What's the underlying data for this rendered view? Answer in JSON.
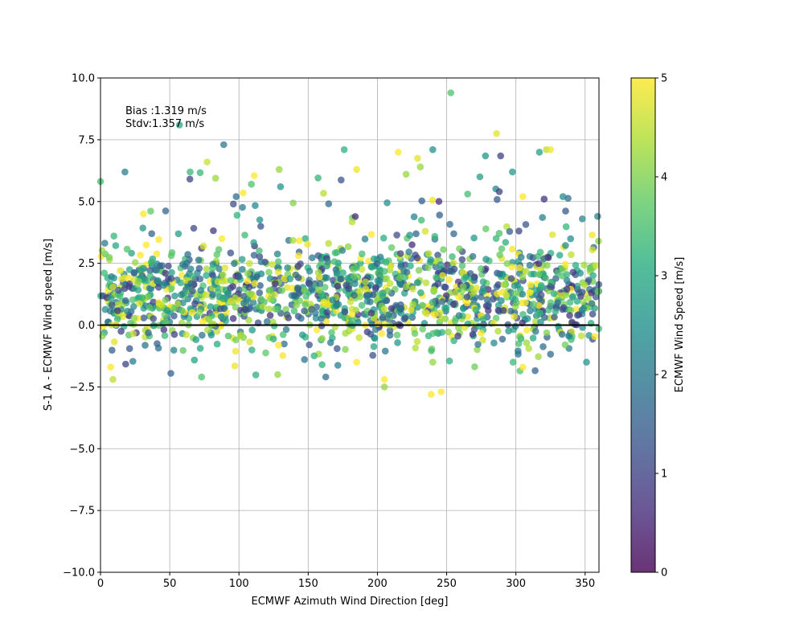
{
  "chart_data": {
    "type": "scatter",
    "xlabel": "ECMWF Azimuth Wind Direction [deg]",
    "ylabel": "S-1 A - ECMWF Wind speed [m/s]",
    "xlim": [
      0,
      360
    ],
    "ylim": [
      -10,
      10
    ],
    "x_ticks": [
      0,
      50,
      100,
      150,
      200,
      250,
      300,
      350
    ],
    "x_tick_labels": [
      "0",
      "50",
      "100",
      "150",
      "200",
      "250",
      "300",
      "350"
    ],
    "y_ticks": [
      -10,
      -7.5,
      -5,
      -2.5,
      0,
      2.5,
      5,
      7.5,
      10
    ],
    "y_tick_labels": [
      "−10.0",
      "−7.5",
      "−5.0",
      "−2.5",
      "0.0",
      "2.5",
      "5.0",
      "7.5",
      "10.0"
    ],
    "grid": true,
    "reference_line_y": 0,
    "annotations": [
      "Bias :1.319 m/s",
      "Stdv:1.357 m/s"
    ],
    "colorbar": {
      "label": "ECMWF Wind Speed [m/s]",
      "range": [
        0,
        5
      ],
      "ticks": [
        "0",
        "1",
        "2",
        "3",
        "4",
        "5"
      ],
      "colormap": "viridis"
    },
    "point_count_estimate": 1500,
    "point_alpha": 0.75,
    "highlighted_points": [
      {
        "x": 253,
        "y": 9.4,
        "c": 3.6
      },
      {
        "x": 57,
        "y": 8.1,
        "c": 3.0
      },
      {
        "x": 89,
        "y": 7.3,
        "c": 2.0
      },
      {
        "x": 286,
        "y": 7.75,
        "c": 4.8
      },
      {
        "x": 176,
        "y": 7.1,
        "c": 3.2
      },
      {
        "x": 240,
        "y": 7.1,
        "c": 2.5
      },
      {
        "x": 215,
        "y": 7.0,
        "c": 5.0
      },
      {
        "x": 229,
        "y": 6.75,
        "c": 4.8
      },
      {
        "x": 289,
        "y": 6.85,
        "c": 1.0
      },
      {
        "x": 317,
        "y": 7.0,
        "c": 2.8
      },
      {
        "x": 278,
        "y": 6.85,
        "c": 2.6
      },
      {
        "x": 322,
        "y": 7.1,
        "c": 4.5
      },
      {
        "x": 325,
        "y": 7.1,
        "c": 4.9
      },
      {
        "x": 77,
        "y": 6.6,
        "c": 4.6
      },
      {
        "x": 129,
        "y": 6.3,
        "c": 4.2
      },
      {
        "x": 185,
        "y": 6.3,
        "c": 4.9
      },
      {
        "x": 231,
        "y": 6.4,
        "c": 4.2
      },
      {
        "x": 111,
        "y": 6.05,
        "c": 5.0
      },
      {
        "x": 274,
        "y": 6.0,
        "c": 2.8
      },
      {
        "x": 109,
        "y": 5.7,
        "c": 3.6
      },
      {
        "x": 130,
        "y": 5.6,
        "c": 2.6
      },
      {
        "x": 103,
        "y": 5.35,
        "c": 5.0
      },
      {
        "x": 288,
        "y": 5.4,
        "c": 1.0
      },
      {
        "x": 98,
        "y": 5.2,
        "c": 1.8
      },
      {
        "x": 96,
        "y": 4.9,
        "c": 1.2
      },
      {
        "x": 207,
        "y": 4.95,
        "c": 2.5
      },
      {
        "x": 334,
        "y": 5.2,
        "c": 2.4
      },
      {
        "x": 305,
        "y": 5.2,
        "c": 5.0
      },
      {
        "x": 31,
        "y": 4.5,
        "c": 5.0
      },
      {
        "x": 359,
        "y": 4.4,
        "c": 2.3
      },
      {
        "x": 348,
        "y": 4.3,
        "c": 2.3
      },
      {
        "x": 37,
        "y": 3.7,
        "c": 1.6
      },
      {
        "x": 9,
        "y": -2.2,
        "c": 4.5
      },
      {
        "x": 73,
        "y": -2.1,
        "c": 3.6
      },
      {
        "x": 128,
        "y": -2.0,
        "c": 4.2
      },
      {
        "x": 205,
        "y": -2.5,
        "c": 4.2
      },
      {
        "x": 205,
        "y": -2.2,
        "c": 5.0
      },
      {
        "x": 246,
        "y": -2.7,
        "c": 5.0
      },
      {
        "x": 303,
        "y": -1.85,
        "c": 3.6
      },
      {
        "x": 305,
        "y": -1.7,
        "c": 5.0
      },
      {
        "x": 21,
        "y": -0.95,
        "c": 1.3
      },
      {
        "x": 97,
        "y": -1.65,
        "c": 4.9
      },
      {
        "x": 160,
        "y": -1.6,
        "c": 3.2
      },
      {
        "x": 185,
        "y": -1.5,
        "c": 5.0
      },
      {
        "x": 240,
        "y": -1.5,
        "c": 4.2
      },
      {
        "x": 252,
        "y": -1.45,
        "c": 3.2
      },
      {
        "x": 298,
        "y": -1.5,
        "c": 3.4
      },
      {
        "x": 351,
        "y": -1.5,
        "c": 2.6
      }
    ]
  }
}
